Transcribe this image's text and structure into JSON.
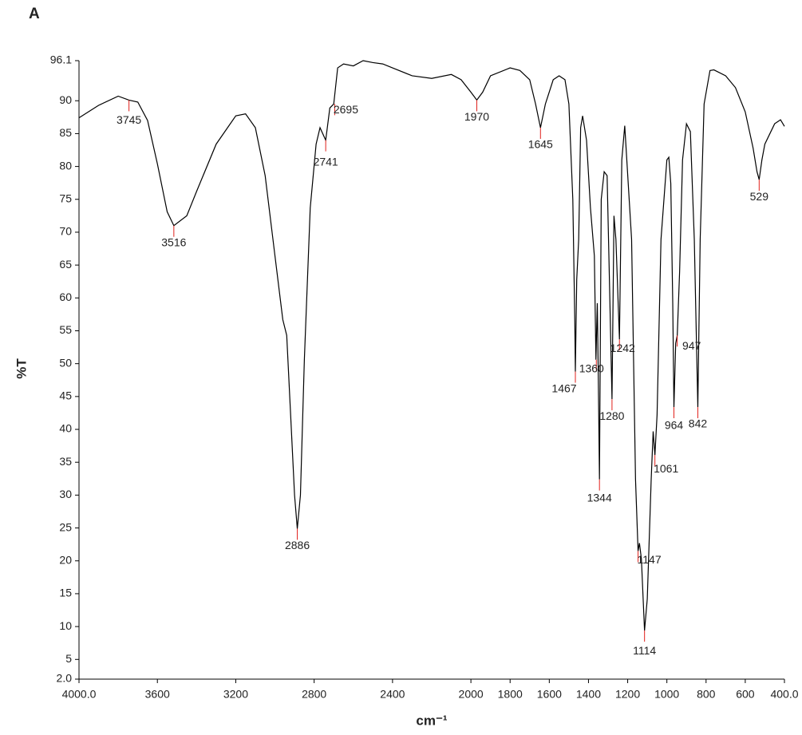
{
  "chart_data": {
    "type": "line",
    "panel_label": "A",
    "xlabel": "cm⁻¹",
    "ylabel": "%T",
    "xlim": [
      4000,
      400
    ],
    "ylim": [
      2.0,
      96.1
    ],
    "xticks": [
      {
        "value": 4000,
        "label": "4000.0"
      },
      3600,
      3200,
      2800,
      2400,
      2000,
      1800,
      1600,
      1400,
      1200,
      1000,
      800,
      600,
      {
        "value": 400,
        "label": "400.0"
      }
    ],
    "yticks": [
      {
        "value": 2,
        "label": "2.0"
      },
      5,
      10,
      15,
      20,
      25,
      30,
      35,
      40,
      45,
      50,
      55,
      60,
      65,
      70,
      75,
      80,
      85,
      90,
      96.1
    ],
    "series": [
      {
        "color": "#000000",
        "x": [
          4000,
          3900,
          3800,
          3745,
          3700,
          3650,
          3600,
          3550,
          3516,
          3450,
          3400,
          3300,
          3200,
          3150,
          3100,
          3050,
          3000,
          2960,
          2940,
          2920,
          2900,
          2886,
          2870,
          2850,
          2820,
          2790,
          2770,
          2741,
          2720,
          2700,
          2680,
          2650,
          2600,
          2550,
          2500,
          2450,
          2400,
          2300,
          2200,
          2100,
          2050,
          2000,
          1970,
          1940,
          1900,
          1800,
          1750,
          1700,
          1670,
          1645,
          1620,
          1580,
          1550,
          1520,
          1500,
          1480,
          1470,
          1467,
          1460,
          1450,
          1440,
          1430,
          1410,
          1390,
          1370,
          1362,
          1355,
          1350,
          1344,
          1335,
          1320,
          1305,
          1295,
          1280,
          1270,
          1260,
          1242,
          1230,
          1215,
          1180,
          1160,
          1147,
          1140,
          1130,
          1114,
          1100,
          1080,
          1070,
          1061,
          1050,
          1030,
          1000,
          990,
          980,
          970,
          964,
          955,
          947,
          935,
          920,
          900,
          880,
          860,
          842,
          830,
          810,
          780,
          760,
          700,
          650,
          600,
          560,
          540,
          529,
          515,
          500,
          450,
          420,
          400
        ],
        "values": [
          87.4,
          89.3,
          90.7,
          90.1,
          89.8,
          87,
          80.4,
          73.1,
          71,
          72.5,
          76.2,
          83.4,
          87.7,
          88,
          85.9,
          78.6,
          66.4,
          56.7,
          54.3,
          42.2,
          30,
          24.9,
          30,
          50.6,
          73.7,
          83.4,
          85.9,
          84,
          88.9,
          89.5,
          95,
          95.6,
          95.3,
          96.1,
          95.8,
          95.6,
          95,
          93.8,
          93.4,
          94,
          93.2,
          91.3,
          90.1,
          91.3,
          93.8,
          95,
          94.6,
          93.2,
          89.5,
          85.9,
          89.5,
          93.2,
          93.8,
          93.2,
          89.5,
          75,
          56.7,
          48.8,
          62.8,
          68.9,
          85.9,
          87.7,
          84,
          73.7,
          66.4,
          50.6,
          59.2,
          48.2,
          32.4,
          75,
          79.2,
          78.6,
          65.2,
          44.6,
          72.5,
          68.9,
          53.7,
          81,
          86.2,
          68.9,
          32.4,
          21.5,
          22.7,
          20.3,
          9.4,
          14.2,
          32.4,
          39.7,
          36.1,
          42.2,
          68.9,
          81,
          81.4,
          77.4,
          59.2,
          43.4,
          53.1,
          54.3,
          64,
          81,
          86.5,
          85.3,
          68.9,
          43.4,
          68.9,
          89.5,
          94.6,
          94.7,
          93.8,
          92,
          88.3,
          82.8,
          79.2,
          78,
          81,
          83.4,
          86.5,
          87.1,
          86.1
        ]
      }
    ],
    "peaks": [
      {
        "x": 3745,
        "y": 90.1
      },
      {
        "x": 3516,
        "y": 71
      },
      {
        "x": 2886,
        "y": 24.9
      },
      {
        "x": 2741,
        "y": 84
      },
      {
        "x": 2695,
        "y": 89.5
      },
      {
        "x": 1970,
        "y": 90.1
      },
      {
        "x": 1645,
        "y": 85.9
      },
      {
        "x": 1467,
        "y": 48.8
      },
      {
        "x": 1360,
        "y": 50.6
      },
      {
        "x": 1344,
        "y": 32.4
      },
      {
        "x": 1280,
        "y": 44.6
      },
      {
        "x": 1242,
        "y": 53.7
      },
      {
        "x": 1147,
        "y": 21.5
      },
      {
        "x": 1114,
        "y": 9.4
      },
      {
        "x": 1061,
        "y": 36.1
      },
      {
        "x": 964,
        "y": 43.4
      },
      {
        "x": 947,
        "y": 54.3
      },
      {
        "x": 842,
        "y": 43.4
      },
      {
        "x": 529,
        "y": 78
      }
    ],
    "peak_color": "#e0201b"
  }
}
